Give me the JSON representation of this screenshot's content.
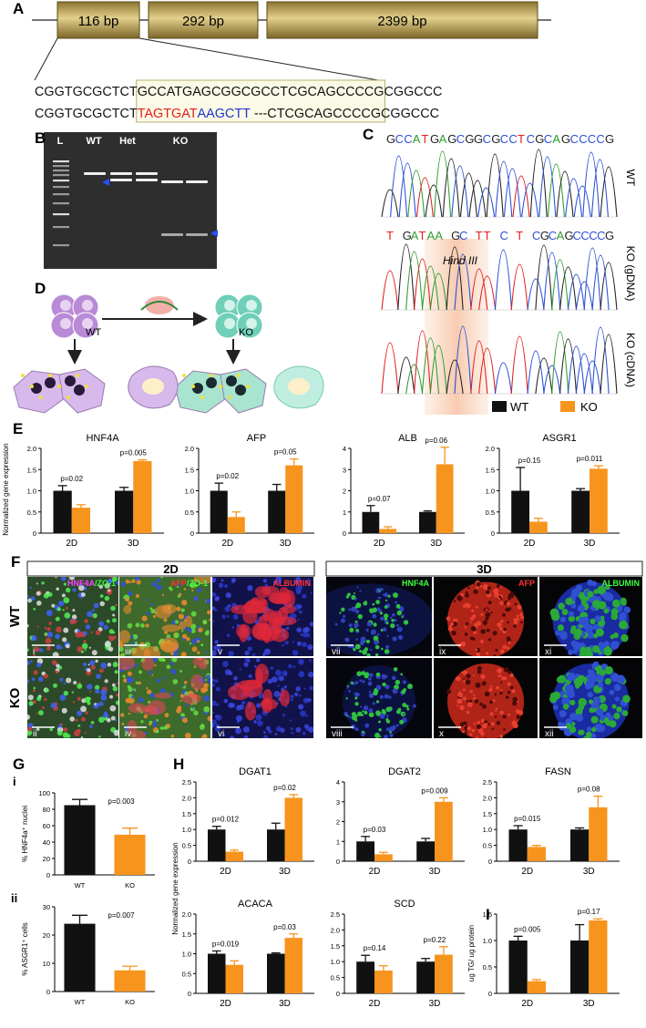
{
  "panel_labels": [
    "A",
    "B",
    "C",
    "D",
    "E",
    "F",
    "G",
    "H",
    "I"
  ],
  "gene": {
    "exons": [
      "116 bp",
      "292 bp",
      "2399 bp"
    ],
    "sequences": [
      [
        "CGGTGCGCTCT",
        "GCCATGAGCGGCGCCTCGCAGCCCCG",
        "CGGCCC"
      ],
      [
        "CGGTGCGCTCT",
        "TAGTGAT",
        "AAGCTT",
        " ---CTCGCAGCCCCG",
        "CGGCCC"
      ]
    ]
  },
  "gel": {
    "lanes": [
      "L",
      "WT",
      "Het",
      "KO"
    ]
  },
  "chromatograms": {
    "rows": [
      {
        "sequence": "GCCATGAGCGGCGCCTCGCAGCCCCG",
        "label": "WT"
      },
      {
        "sequence": "T GATAA GC TT C T CGCAGCCCCG",
        "label": "KO (gDNA)",
        "annotation": "Hind III"
      },
      {
        "label": "KO (cDNA)"
      }
    ]
  },
  "schematic": {
    "labels": [
      "WT",
      "KO"
    ]
  },
  "imaging": {
    "conditions": [
      "2D",
      "3D"
    ],
    "rows": [
      "WT",
      "KO"
    ],
    "stains": [
      [
        "HNF4A",
        "/ZO-1"
      ],
      [
        "AFP",
        "/ZO-1"
      ],
      [
        "ALBUMIN"
      ],
      [
        "HNF4A"
      ],
      [
        "AFP"
      ],
      [
        "ALBUMIN"
      ]
    ],
    "numerals": [
      [
        "i",
        "iii",
        "v",
        "vii",
        "ix",
        "xi"
      ],
      [
        "ii",
        "iv",
        "vi",
        "viii",
        "x",
        "xii"
      ]
    ]
  },
  "chart_data": [
    {
      "type": "bar",
      "title": "HNF4A",
      "y_label": "Normalized gene expression",
      "categories": [
        "2D",
        "3D"
      ],
      "series": [
        {
          "name": "WT",
          "color": "#111111",
          "values": [
            1.0,
            1.0
          ],
          "errors": [
            0.12,
            0.08
          ]
        },
        {
          "name": "KO",
          "color": "#f7941d",
          "values": [
            0.6,
            1.7
          ],
          "errors": [
            0.07,
            0.03
          ]
        }
      ],
      "ylim": [
        0,
        2
      ],
      "yticks": [
        0,
        0.5,
        {
          "value": 1,
          "label": "1.0"
        },
        1.5,
        {
          "value": 2,
          "label": "2.0"
        }
      ],
      "annotations": [
        "p=0.02",
        "p=0.005"
      ]
    },
    {
      "type": "bar",
      "title": "AFP",
      "categories": [
        "2D",
        "3D"
      ],
      "series": [
        {
          "name": "WT",
          "color": "#111111",
          "values": [
            1.0,
            1.0
          ],
          "errors": [
            0.18,
            0.15
          ]
        },
        {
          "name": "KO",
          "color": "#f7941d",
          "values": [
            0.38,
            1.6
          ],
          "errors": [
            0.12,
            0.15
          ]
        }
      ],
      "ylim": [
        0,
        2
      ],
      "yticks": [
        0,
        0.5,
        {
          "value": 1,
          "label": "1.0"
        },
        1.5,
        {
          "value": 2,
          "label": "2.0"
        }
      ],
      "annotations": [
        "p=0.02",
        "p=0.05"
      ]
    },
    {
      "type": "bar",
      "title": "ALB",
      "categories": [
        "2D",
        "3D"
      ],
      "series": [
        {
          "name": "WT",
          "color": "#111111",
          "values": [
            1.0,
            1.0
          ],
          "errors": [
            0.3,
            0.05
          ]
        },
        {
          "name": "KO",
          "color": "#f7941d",
          "values": [
            0.2,
            3.25
          ],
          "errors": [
            0.1,
            0.8
          ]
        }
      ],
      "ylim": [
        0,
        4
      ],
      "yticks": [
        0,
        1,
        2,
        3,
        4
      ],
      "annotations": [
        "p=0.07",
        "p=0.06"
      ]
    },
    {
      "type": "bar",
      "title": "ASGR1",
      "categories": [
        "2D",
        "3D"
      ],
      "series": [
        {
          "name": "WT",
          "color": "#111111",
          "values": [
            1.0,
            1.0
          ],
          "errors": [
            0.55,
            0.05
          ]
        },
        {
          "name": "KO",
          "color": "#f7941d",
          "values": [
            0.27,
            1.52
          ],
          "errors": [
            0.08,
            0.07
          ]
        }
      ],
      "ylim": [
        0,
        2
      ],
      "yticks": [
        0,
        0.5,
        {
          "value": 1,
          "label": "1.0"
        },
        1.5,
        {
          "value": 2,
          "label": "2.0"
        }
      ],
      "annotations": [
        "p=0.15",
        "p=0.011"
      ]
    },
    {
      "type": "bar",
      "panel": "i",
      "y_label": "% HNF4a⁺ nuclei",
      "categories": [
        "WT",
        "KO"
      ],
      "values": [
        85,
        49
      ],
      "errors": [
        7,
        8
      ],
      "colors": [
        "#111111",
        "#f7941d"
      ],
      "ylim": [
        0,
        100
      ],
      "yticks": [
        0,
        20,
        40,
        60,
        80,
        100
      ],
      "annotations": [
        "p=0.003"
      ]
    },
    {
      "type": "bar",
      "panel": "ii",
      "y_label": "% ASGR1⁺ cells",
      "categories": [
        "WT",
        "KO"
      ],
      "values": [
        24,
        7.5
      ],
      "errors": [
        3,
        1.5
      ],
      "colors": [
        "#111111",
        "#f7941d"
      ],
      "ylim": [
        0,
        30
      ],
      "yticks": [
        0,
        10,
        20,
        30
      ],
      "annotations": [
        "p=0.007"
      ]
    },
    {
      "type": "bar",
      "title": "DGAT1",
      "y_label": "Normalized gene expression",
      "categories": [
        "2D",
        "3D"
      ],
      "series": [
        {
          "name": "WT",
          "color": "#111111",
          "values": [
            1.0,
            1.0
          ],
          "errors": [
            0.1,
            0.2
          ]
        },
        {
          "name": "KO",
          "color": "#f7941d",
          "values": [
            0.3,
            2.0
          ],
          "errors": [
            0.05,
            0.1
          ]
        }
      ],
      "ylim": [
        0,
        2.5
      ],
      "yticks": [
        0,
        0.5,
        {
          "value": 1,
          "label": "1.0"
        },
        1.5,
        {
          "value": 2,
          "label": "2.0"
        },
        2.5
      ],
      "annotations": [
        "p=0.012",
        "p=0.02"
      ]
    },
    {
      "type": "bar",
      "title": "DGAT2",
      "categories": [
        "2D",
        "3D"
      ],
      "series": [
        {
          "name": "WT",
          "color": "#111111",
          "values": [
            1.0,
            1.0
          ],
          "errors": [
            0.25,
            0.15
          ]
        },
        {
          "name": "KO",
          "color": "#f7941d",
          "values": [
            0.35,
            3.0
          ],
          "errors": [
            0.1,
            0.2
          ]
        }
      ],
      "ylim": [
        0,
        4
      ],
      "yticks": [
        0,
        1,
        2,
        3,
        4
      ],
      "annotations": [
        "p=0.03",
        "p=0.009"
      ]
    },
    {
      "type": "bar",
      "title": "FASN",
      "categories": [
        "2D",
        "3D"
      ],
      "series": [
        {
          "name": "WT",
          "color": "#111111",
          "values": [
            1.0,
            1.0
          ],
          "errors": [
            0.12,
            0.05
          ]
        },
        {
          "name": "KO",
          "color": "#f7941d",
          "values": [
            0.45,
            1.7
          ],
          "errors": [
            0.05,
            0.35
          ]
        }
      ],
      "ylim": [
        0,
        2.5
      ],
      "yticks": [
        0,
        0.5,
        {
          "value": 1,
          "label": "1.0"
        },
        1.5,
        {
          "value": 2,
          "label": "2.0"
        },
        2.5
      ],
      "annotations": [
        "p=0.015",
        "p=0.08"
      ]
    },
    {
      "type": "bar",
      "title": "ACACA",
      "categories": [
        "2D",
        "3D"
      ],
      "series": [
        {
          "name": "WT",
          "color": "#111111",
          "values": [
            1.0,
            1.0
          ],
          "errors": [
            0.07,
            0.02
          ]
        },
        {
          "name": "KO",
          "color": "#f7941d",
          "values": [
            0.72,
            1.4
          ],
          "errors": [
            0.1,
            0.1
          ]
        }
      ],
      "ylim": [
        0,
        2
      ],
      "yticks": [
        0,
        0.5,
        {
          "value": 1,
          "label": "1.0"
        },
        1.5,
        {
          "value": 2,
          "label": "2.0"
        }
      ],
      "annotations": [
        "p=0.019",
        "p=0.03"
      ]
    },
    {
      "type": "bar",
      "title": "SCD",
      "categories": [
        "2D",
        "3D"
      ],
      "series": [
        {
          "name": "WT",
          "color": "#111111",
          "values": [
            1.0,
            1.0
          ],
          "errors": [
            0.2,
            0.1
          ]
        },
        {
          "name": "KO",
          "color": "#f7941d",
          "values": [
            0.72,
            1.22
          ],
          "errors": [
            0.15,
            0.25
          ]
        }
      ],
      "ylim": [
        0,
        2.5
      ],
      "yticks": [
        0,
        0.5,
        {
          "value": 1,
          "label": "1.0"
        },
        1.5,
        {
          "value": 2,
          "label": "2.0"
        },
        2.5
      ],
      "annotations": [
        "p=0.14",
        "p=0.22"
      ]
    },
    {
      "type": "bar",
      "y_label": "ug TG/ ug protein",
      "categories": [
        "2D",
        "3D"
      ],
      "series": [
        {
          "name": "WT",
          "color": "#111111",
          "values": [
            1.0,
            1.0
          ],
          "errors": [
            0.08,
            0.3
          ]
        },
        {
          "name": "KO",
          "color": "#f7941d",
          "values": [
            0.23,
            1.38
          ],
          "errors": [
            0.03,
            0.03
          ]
        }
      ],
      "ylim": [
        0,
        1.5
      ],
      "yticks": [
        0,
        0.5,
        {
          "value": 1,
          "label": "1.0"
        },
        1.5
      ],
      "annotations": [
        "p=0.005",
        "p=0.17"
      ]
    }
  ]
}
